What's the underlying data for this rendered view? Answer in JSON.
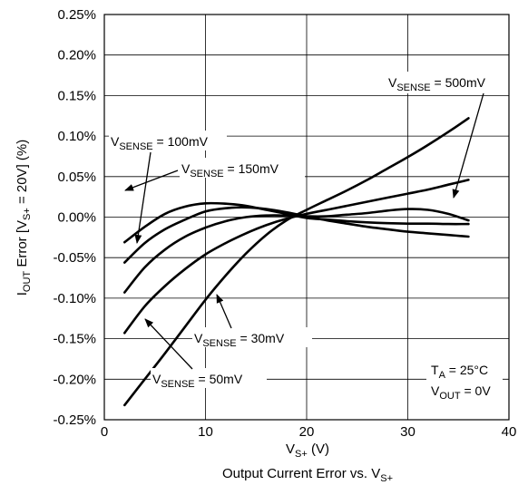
{
  "chart_data": {
    "type": "line",
    "title": "Output Current Error vs. V",
    "title_sub": "S+",
    "xlabel_main": "V",
    "xlabel_sub": "S+",
    "xlabel_tail": " (V)",
    "ylabel": {
      "p1": "I",
      "p1_sub": "OUT",
      "p2": " Error [V",
      "p2_sub": "S+",
      "p3": " = 20V] (%)"
    },
    "xlim": [
      0,
      40
    ],
    "ylim": [
      -0.25,
      0.25
    ],
    "x_ticks": [
      0,
      10,
      20,
      30,
      40
    ],
    "x_tick_labels": [
      "0",
      "10",
      "20",
      "30",
      "40"
    ],
    "y_ticks": [
      0.25,
      0.2,
      0.15,
      0.1,
      0.05,
      0.0,
      -0.05,
      -0.1,
      -0.15,
      -0.2,
      -0.25
    ],
    "y_tick_labels": [
      "0.25%",
      "0.20%",
      "0.15%",
      "0.10%",
      "0.05%",
      "0.00%",
      "-0.05%",
      "-0.10%",
      "-0.15%",
      "-0.20%",
      "-0.25%"
    ],
    "grid": true,
    "series": [
      {
        "name": "V_SENSE = 100mV",
        "x": [
          2,
          4,
          6,
          8,
          10,
          12,
          14,
          16,
          18,
          20,
          22,
          24,
          26,
          28,
          30,
          32,
          34,
          36
        ],
        "y": [
          -0.031,
          -0.012,
          0.004,
          0.013,
          0.017,
          0.0165,
          0.014,
          0.009,
          0.004,
          -0.001,
          -0.003,
          -0.005,
          -0.0065,
          -0.0075,
          -0.008,
          -0.008,
          -0.0085,
          -0.0085
        ]
      },
      {
        "name": "V_SENSE = 150mV",
        "x": [
          2,
          4,
          6,
          8,
          10,
          12,
          14,
          16,
          18,
          20,
          22,
          24,
          26,
          28,
          30,
          32,
          34,
          36
        ],
        "y": [
          -0.056,
          -0.032,
          -0.015,
          -0.003,
          0.007,
          0.011,
          0.012,
          0.01,
          0.006,
          0.001,
          -0.004,
          -0.008,
          -0.012,
          -0.015,
          -0.018,
          -0.02,
          -0.022,
          -0.024
        ]
      },
      {
        "name": "V_SENSE = 500mV",
        "x": [
          2,
          4,
          6,
          8,
          10,
          12,
          14,
          16,
          18,
          20,
          22,
          24,
          26,
          28,
          30,
          32,
          34,
          36
        ],
        "y": [
          -0.093,
          -0.062,
          -0.04,
          -0.024,
          -0.013,
          -0.005,
          0.0,
          0.002,
          0.002,
          0.001,
          0.001,
          0.003,
          0.005,
          0.008,
          0.01,
          0.009,
          0.004,
          -0.004
        ]
      },
      {
        "name": "V_SENSE = 50mV",
        "x": [
          2,
          4,
          6,
          8,
          10,
          12,
          14,
          16,
          18,
          20,
          22,
          24,
          26,
          28,
          30,
          32,
          34,
          36
        ],
        "y": [
          -0.143,
          -0.11,
          -0.085,
          -0.064,
          -0.046,
          -0.032,
          -0.02,
          -0.01,
          -0.002,
          0.004,
          0.009,
          0.014,
          0.019,
          0.024,
          0.029,
          0.034,
          0.04,
          0.046
        ]
      },
      {
        "name": "V_SENSE = 30mV",
        "x": [
          2,
          4,
          6,
          8,
          10,
          12,
          14,
          16,
          18,
          20,
          22,
          24,
          26,
          28,
          30,
          32,
          34,
          36
        ],
        "y": [
          -0.232,
          -0.2,
          -0.168,
          -0.135,
          -0.102,
          -0.072,
          -0.045,
          -0.022,
          -0.004,
          0.009,
          0.021,
          0.033,
          0.046,
          0.06,
          0.074,
          0.089,
          0.105,
          0.122
        ]
      }
    ],
    "annotations": [
      {
        "main": "V",
        "sub": "SENSE",
        "tail": " = 100mV"
      },
      {
        "main": "V",
        "sub": "SENSE",
        "tail": " = 150mV"
      },
      {
        "main": "V",
        "sub": "SENSE",
        "tail": " = 500mV"
      },
      {
        "main": "V",
        "sub": "SENSE",
        "tail": " = 30mV"
      },
      {
        "main": "V",
        "sub": "SENSE",
        "tail": " = 50mV"
      }
    ],
    "conditions": {
      "ta_main": "T",
      "ta_sub": "A",
      "ta_tail": " = 25°C",
      "vout_main": "V",
      "vout_sub": "OUT",
      "vout_tail": " = 0V"
    }
  }
}
